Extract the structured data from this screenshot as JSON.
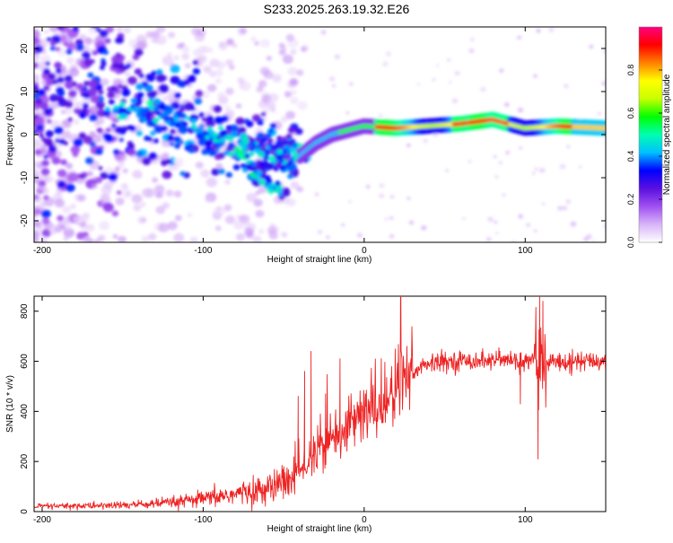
{
  "title": "S233.2025.263.19.32.E26",
  "chart_data": [
    {
      "type": "heatmap",
      "xlabel": "Height of straight line (km)",
      "ylabel": "Frequency (Hz)",
      "xlim": [
        -205,
        150
      ],
      "ylim": [
        -25,
        25
      ],
      "xticks": [
        -200,
        -100,
        0,
        100
      ],
      "yticks": [
        -20,
        -10,
        0,
        10,
        20
      ],
      "colorbar": {
        "label": "Normalized spectral amplitude",
        "ticks": [
          0.0,
          0.2,
          0.4,
          0.6,
          0.8
        ],
        "range": [
          0,
          1
        ],
        "colors": [
          "#ffffff",
          "#d8b4f8",
          "#a050f0",
          "#5a10e0",
          "#0000ff",
          "#00c0ff",
          "#00ffb0",
          "#00ff00",
          "#c8ff00",
          "#ffff00",
          "#ff8000",
          "#ff0000",
          "#ff0080"
        ]
      },
      "ridge": {
        "x": [
          -200,
          -180,
          -160,
          -140,
          -120,
          -100,
          -80,
          -60,
          -50,
          -40,
          -30,
          -20,
          -10,
          0,
          20,
          40,
          60,
          80,
          100,
          120,
          150
        ],
        "y": [
          5,
          9,
          7,
          6,
          3,
          1,
          -2,
          -4,
          -6,
          -5,
          -2,
          0,
          1,
          2,
          1.5,
          2,
          2.5,
          3.5,
          1.5,
          2,
          1.5
        ]
      },
      "branch": {
        "x": [
          -80,
          -72,
          -64,
          -57,
          -52
        ],
        "y": [
          -4,
          -7,
          -10,
          -12,
          -13
        ]
      }
    },
    {
      "type": "line",
      "xlabel": "Height of straight line (km)",
      "ylabel": "SNR (10 * v/v)",
      "xlim": [
        -205,
        150
      ],
      "ylim": [
        0,
        860
      ],
      "xticks": [
        -200,
        -100,
        0,
        100
      ],
      "yticks": [
        0,
        200,
        400,
        600,
        800
      ],
      "color": "#ee2222",
      "trend": {
        "x": [
          -205,
          -150,
          -120,
          -100,
          -80,
          -60,
          -45,
          -35,
          -25,
          -15,
          -5,
          5,
          15,
          25,
          35,
          50,
          80,
          100,
          150
        ],
        "y": [
          20,
          25,
          35,
          50,
          70,
          90,
          130,
          190,
          260,
          320,
          370,
          410,
          440,
          520,
          580,
          600,
          605,
          600,
          600
        ]
      },
      "spikes": [
        {
          "x": -41,
          "y": 460
        },
        {
          "x": -37,
          "y": 560
        },
        {
          "x": -33,
          "y": 640
        },
        {
          "x": -24,
          "y": 470
        },
        {
          "x": -15,
          "y": 610
        },
        {
          "x": 97,
          "y": 430
        },
        {
          "x": 108,
          "y": 210
        },
        {
          "x": 109,
          "y": 860
        },
        {
          "x": 111,
          "y": 840
        }
      ]
    }
  ]
}
